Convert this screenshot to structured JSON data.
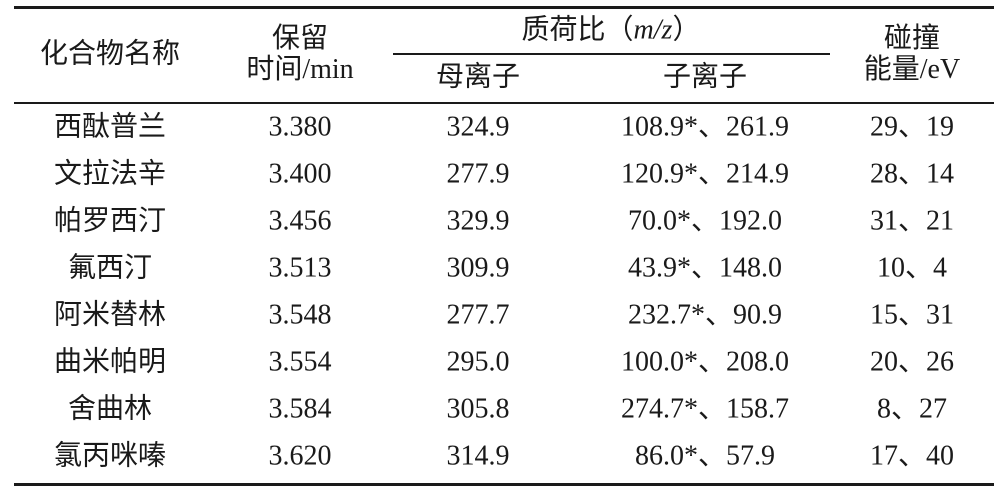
{
  "table": {
    "header": {
      "name": "化合物名称",
      "retention": [
        "保留",
        "时间/min"
      ],
      "mz": [
        "质荷比（",
        "m/z",
        "）"
      ],
      "precursor": "母离子",
      "product": "子离子",
      "energy": [
        "碰撞",
        "能量/eV"
      ]
    },
    "rows": [
      [
        "西酞普兰",
        "3.380",
        "324.9",
        "108.9*、261.9",
        "29、19"
      ],
      [
        "文拉法辛",
        "3.400",
        "277.9",
        "120.9*、214.9",
        "28、14"
      ],
      [
        "帕罗西汀",
        "3.456",
        "329.9",
        "70.0*、192.0",
        "31、21"
      ],
      [
        "氟西汀",
        "3.513",
        "309.9",
        "43.9*、148.0",
        "10、4"
      ],
      [
        "阿米替林",
        "3.548",
        "277.7",
        "232.7*、90.9",
        "15、31"
      ],
      [
        "曲米帕明",
        "3.554",
        "295.0",
        "100.0*、208.0",
        "20、26"
      ],
      [
        "舍曲林",
        "3.584",
        "305.8",
        "274.7*、158.7",
        "8、27"
      ],
      [
        "氯丙咪嗪",
        "3.620",
        "314.9",
        "86.0*、57.9",
        "17、40"
      ]
    ]
  }
}
